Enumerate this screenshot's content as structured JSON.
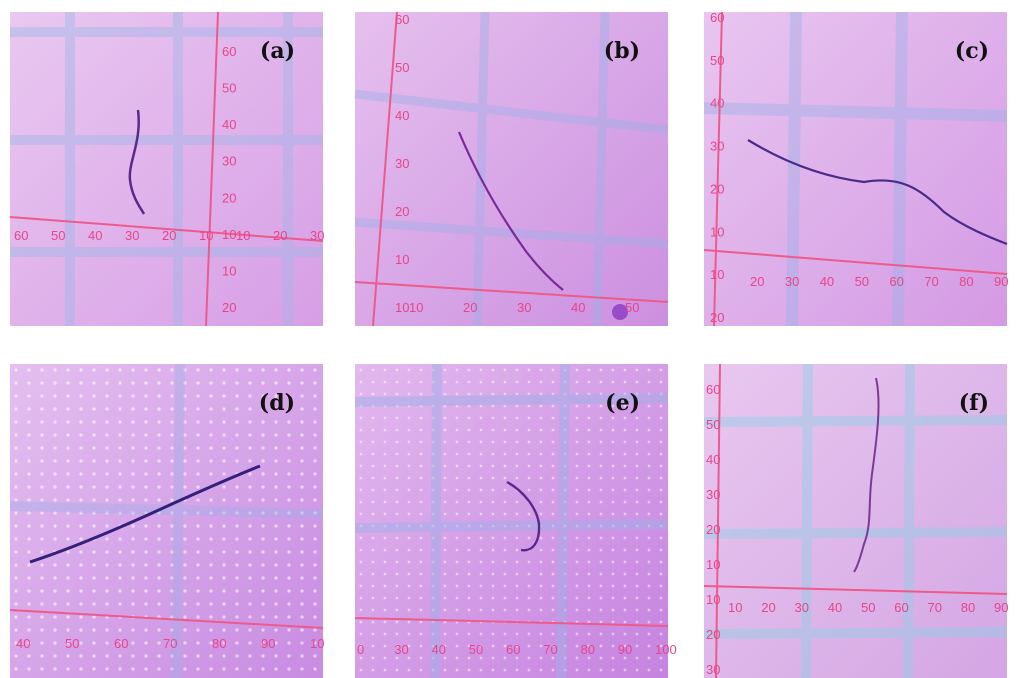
{
  "figure": {
    "panels": [
      {
        "label": "(a)",
        "h_ticks": [
          "60",
          "50",
          "40",
          "30",
          "20",
          "10",
          "10",
          "20",
          "30"
        ],
        "v_ticks": [
          "60",
          "50",
          "40",
          "30",
          "20",
          "10",
          "10",
          "20"
        ]
      },
      {
        "label": "(b)",
        "h_ticks": [
          "10",
          "20",
          "30",
          "40",
          "50"
        ],
        "v_ticks": [
          "60",
          "50",
          "40",
          "30",
          "20",
          "10",
          "10"
        ]
      },
      {
        "label": "(c)",
        "h_ticks": [
          "20",
          "30",
          "40",
          "50",
          "60",
          "70",
          "80",
          "90"
        ],
        "v_ticks": [
          "60",
          "50",
          "40",
          "30",
          "20",
          "10",
          "10",
          "20"
        ]
      },
      {
        "label": "(d)",
        "h_ticks": [
          "40",
          "50",
          "60",
          "70",
          "80",
          "90",
          "10"
        ],
        "v_ticks": []
      },
      {
        "label": "(e)",
        "h_ticks": [
          "0",
          "30",
          "40",
          "50",
          "60",
          "70",
          "80",
          "90",
          "100"
        ],
        "v_ticks": []
      },
      {
        "label": "(f)",
        "h_ticks": [
          "10",
          "20",
          "30",
          "40",
          "50",
          "60",
          "70",
          "80",
          "90"
        ],
        "v_ticks": [
          "60",
          "50",
          "40",
          "30",
          "20",
          "10",
          "10",
          "20",
          "30"
        ]
      }
    ]
  }
}
